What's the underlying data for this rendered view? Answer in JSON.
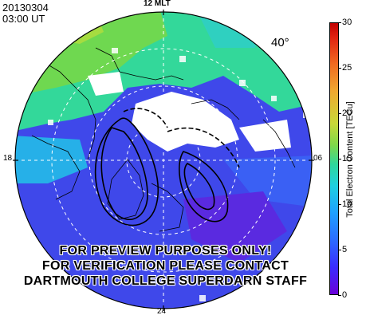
{
  "header": {
    "date": "20130304",
    "time": "03:00 UT"
  },
  "map": {
    "mlt_top": "12 MLT",
    "mlt_left": "18",
    "mlt_right": "06",
    "mlt_bottom": "24",
    "latitude_label": "40°",
    "watermark": [
      "FOR PREVIEW PURPOSES ONLY!",
      "FOR VERIFICATION PLEASE CONTACT",
      "DARTMOUTH COLLEGE SUPERDARN STAFF"
    ]
  },
  "colorbar": {
    "label": "Total Electron Content [TECu]",
    "ticks": [
      "30",
      "25",
      "20",
      "15",
      "10",
      "5",
      "0"
    ],
    "min": 0,
    "max": 30
  }
}
